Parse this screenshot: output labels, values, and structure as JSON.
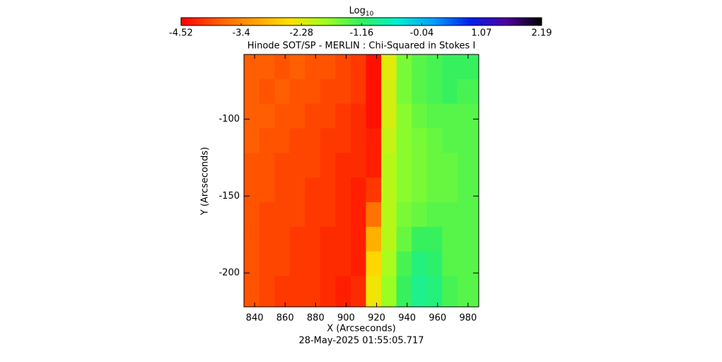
{
  "chart_data": {
    "type": "heatmap",
    "title": "Hinode SOT/SP - MERLIN : Chi-Squared in Stokes I",
    "colorbar_label": {
      "base": "Log",
      "sub": "10"
    },
    "colorbar_lim": [
      -4.52,
      2.19
    ],
    "colorbar_ticks": [
      -4.52,
      -3.4,
      -2.28,
      -1.16,
      -0.04,
      1.07,
      2.19
    ],
    "colormap": [
      "#ff0000",
      "#ff5a00",
      "#ffa000",
      "#ffe000",
      "#a0ff20",
      "#30f060",
      "#00f0d0",
      "#00a0ff",
      "#0020f0",
      "#5000a0",
      "#000000"
    ],
    "x_label": "X (Arcseconds)",
    "y_label": "Y (Arcseconds)",
    "date": "28-May-2025 01:55:05.717",
    "xlim": [
      833,
      987
    ],
    "ylim": [
      -222,
      -58
    ],
    "xticks": [
      840,
      860,
      880,
      900,
      920,
      940,
      960,
      980
    ],
    "yticks": [
      -100,
      -150,
      -200
    ],
    "x": [
      838,
      848,
      858,
      868,
      878,
      888,
      898,
      908,
      918,
      928,
      938,
      948,
      958,
      968,
      978
    ],
    "y": [
      -66,
      -82,
      -98,
      -114,
      -130,
      -146,
      -162,
      -178,
      -194,
      -210
    ],
    "z": [
      [
        -3.8,
        -3.8,
        -3.9,
        -3.8,
        -3.9,
        -3.9,
        -4.0,
        -4.1,
        -4.4,
        -2.3,
        -1.6,
        -1.4,
        -1.3,
        -1.2,
        -1.2
      ],
      [
        -3.8,
        -3.9,
        -3.8,
        -3.9,
        -3.9,
        -4.0,
        -4.0,
        -4.1,
        -4.4,
        -2.2,
        -1.6,
        -1.4,
        -1.3,
        -1.2,
        -1.3
      ],
      [
        -3.8,
        -3.8,
        -3.9,
        -3.9,
        -4.0,
        -4.0,
        -4.1,
        -4.2,
        -4.4,
        -2.2,
        -1.7,
        -1.5,
        -1.4,
        -1.4,
        -1.4
      ],
      [
        -3.8,
        -3.9,
        -3.9,
        -4.0,
        -4.0,
        -4.1,
        -4.1,
        -4.2,
        -4.3,
        -2.1,
        -1.7,
        -1.6,
        -1.5,
        -1.4,
        -1.4
      ],
      [
        -3.9,
        -3.9,
        -4.0,
        -4.0,
        -4.0,
        -4.1,
        -4.2,
        -4.2,
        -4.3,
        -2.0,
        -1.7,
        -1.6,
        -1.5,
        -1.5,
        -1.4
      ],
      [
        -3.9,
        -3.9,
        -4.0,
        -4.0,
        -4.1,
        -4.1,
        -4.2,
        -4.3,
        -4.1,
        -2.0,
        -1.7,
        -1.6,
        -1.5,
        -1.5,
        -1.4
      ],
      [
        -3.9,
        -4.0,
        -4.0,
        -4.0,
        -4.1,
        -4.1,
        -4.2,
        -4.3,
        -3.6,
        -2.0,
        -1.6,
        -1.5,
        -1.4,
        -1.4,
        -1.4
      ],
      [
        -3.9,
        -4.0,
        -4.0,
        -4.1,
        -4.1,
        -4.2,
        -4.2,
        -4.3,
        -3.0,
        -2.0,
        -1.5,
        -1.2,
        -1.2,
        -1.4,
        -1.4
      ],
      [
        -3.9,
        -4.0,
        -4.0,
        -4.1,
        -4.1,
        -4.2,
        -4.2,
        -4.3,
        -2.6,
        -1.9,
        -1.3,
        -1.0,
        -1.1,
        -1.4,
        -1.4
      ],
      [
        -3.9,
        -4.0,
        -4.1,
        -4.1,
        -4.1,
        -4.2,
        -4.3,
        -4.2,
        -2.4,
        -1.8,
        -1.2,
        -0.9,
        -1.0,
        -1.3,
        -1.4
      ]
    ]
  }
}
